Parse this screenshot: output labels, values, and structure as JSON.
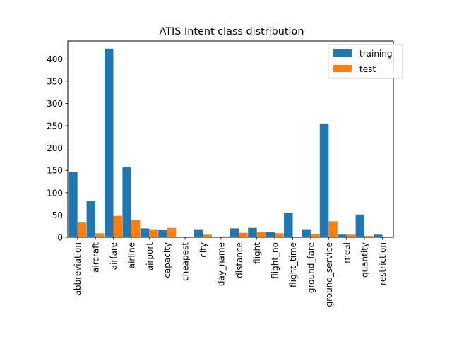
{
  "chart_data": {
    "type": "bar",
    "title": "ATIS Intent class distribution",
    "xlabel": "",
    "ylabel": "",
    "ylim": [
      0,
      440
    ],
    "yticks": [
      0,
      50,
      100,
      150,
      200,
      250,
      300,
      350,
      400
    ],
    "grid": false,
    "legend_position": "top-right",
    "categories": [
      "abbreviation",
      "aircraft",
      "airfare",
      "airline",
      "airport",
      "capacity",
      "cheapest",
      "city",
      "day_name",
      "distance",
      "flight",
      "flight_no",
      "flight_time",
      "ground_fare",
      "ground_service",
      "meal",
      "quantity",
      "restriction"
    ],
    "series": [
      {
        "name": "training",
        "color": "#1f77b4",
        "values": [
          147,
          81,
          423,
          157,
          20,
          16,
          1,
          18,
          0,
          20,
          21,
          12,
          54,
          18,
          255,
          6,
          51,
          6
        ]
      },
      {
        "name": "test",
        "color": "#ff7f0e",
        "values": [
          33,
          9,
          48,
          38,
          18,
          21,
          0,
          6,
          2,
          10,
          12,
          9,
          1,
          7,
          36,
          6,
          3,
          0
        ]
      }
    ]
  }
}
